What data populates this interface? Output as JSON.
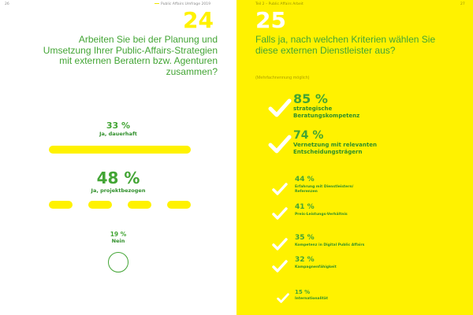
{
  "left": {
    "page_number": "26",
    "header": "Public Affairs Umfrage 2019",
    "question_number": "24",
    "question": "Arbeiten Sie bei der Planung und Umsetzung Ihrer Public-Affairs-Strategien mit externen Beratern bzw. Agenturen zusammen?",
    "answers": [
      {
        "percent": "33 %",
        "label": "Ja, dauerhaft",
        "value": 33
      },
      {
        "percent": "48 %",
        "label": "Ja, projektbezogen",
        "value": 48
      },
      {
        "percent": "19 %",
        "label": "Nein",
        "value": 19
      }
    ]
  },
  "right": {
    "header": "Teil 2 – Public Affairs Arbeit",
    "page_number": "27",
    "question_number": "25",
    "question": "Falls ja, nach welchen Kriterien wählen Sie diese externen Dienstleister aus?",
    "note": "(Mehrfachnennung möglich)",
    "criteria": [
      {
        "percent": "85 %",
        "label": "strategische Beratungskompetenz",
        "value": 85
      },
      {
        "percent": "74 %",
        "label": "Vernetzung mit relevanten Entscheidungsträgern",
        "value": 74
      },
      {
        "percent": "44 %",
        "label": "Erfahrung mit Dienstleistern/ Referenzen",
        "value": 44
      },
      {
        "percent": "41 %",
        "label": "Preis-Leistungs-Verhältnis",
        "value": 41
      },
      {
        "percent": "35 %",
        "label": "Kompetenz in Digital Public Affairs",
        "value": 35
      },
      {
        "percent": "32 %",
        "label": "Kampagnenfähigkeit",
        "value": 32
      },
      {
        "percent": "15 %",
        "label": "Internationalität",
        "value": 15
      }
    ]
  },
  "colors": {
    "yellow": "#fff200",
    "green": "#43a535",
    "dark_green": "#2f8f2a"
  }
}
